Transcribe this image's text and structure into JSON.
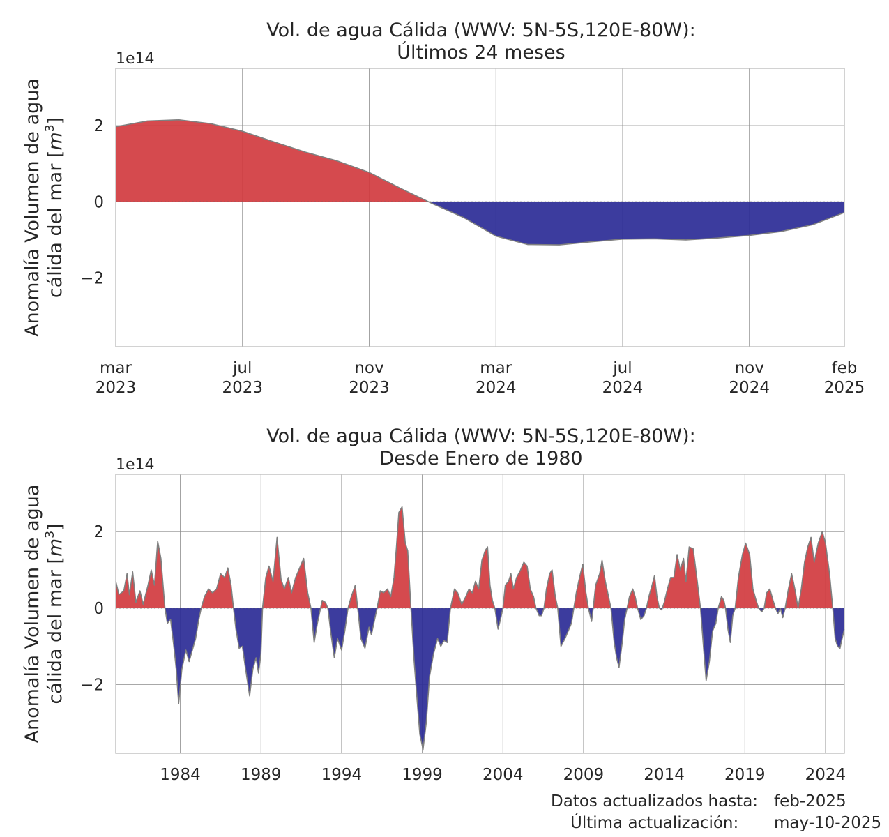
{
  "chart_data": [
    {
      "type": "area",
      "title": "Vol. de agua Cálida (WWV: 5N-5S,120E-80W):",
      "subtitle": "Últimos 24 meses",
      "ylabel": "Anomalía Volumen de agua",
      "ylabel_line2": "cálida del mar [",
      "ylabel_unit": "m",
      "ylabel_exp": "3",
      "ylabel_end": "]",
      "scale_label": "1e14",
      "ylim": [
        -3.8,
        3.5
      ],
      "yticks": [
        2,
        0,
        -2
      ],
      "ytick_labels": [
        "2",
        "0",
        "−2"
      ],
      "xlim": [
        0,
        23
      ],
      "xticks": [
        0,
        4,
        8,
        12,
        16,
        20,
        23
      ],
      "xtick_labels": [
        [
          "mar",
          "2023"
        ],
        [
          "jul",
          "2023"
        ],
        [
          "nov",
          "2023"
        ],
        [
          "mar",
          "2024"
        ],
        [
          "jul",
          "2024"
        ],
        [
          "nov",
          "2024"
        ],
        [
          "feb",
          "2025"
        ]
      ],
      "grid": true,
      "positive_color": "#d13b3f",
      "negative_color": "#2b2b96",
      "x": [
        "mar-2023",
        "abr-2023",
        "may-2023",
        "jun-2023",
        "jul-2023",
        "ago-2023",
        "sep-2023",
        "oct-2023",
        "nov-2023",
        "dic-2023",
        "ene-2024",
        "feb-2024",
        "mar-2024",
        "abr-2024",
        "may-2024",
        "jun-2024",
        "jul-2024",
        "ago-2024",
        "sep-2024",
        "oct-2024",
        "nov-2024",
        "dic-2024",
        "ene-2025",
        "feb-2025"
      ],
      "values": [
        1.97,
        2.12,
        2.15,
        2.05,
        1.85,
        1.57,
        1.3,
        1.07,
        0.77,
        0.35,
        -0.05,
        -0.42,
        -0.9,
        -1.12,
        -1.13,
        -1.05,
        -0.98,
        -0.97,
        -1.0,
        -0.95,
        -0.88,
        -0.78,
        -0.6,
        -0.28
      ]
    },
    {
      "type": "area",
      "title": "Vol. de agua Cálida (WWV: 5N-5S,120E-80W):",
      "subtitle": "Desde Enero de 1980",
      "ylabel": "Anomalía Volumen de agua",
      "ylabel_line2": "cálida del mar [",
      "ylabel_unit": "m",
      "ylabel_exp": "3",
      "ylabel_end": "]",
      "scale_label": "1e14",
      "ylim": [
        -3.8,
        3.5
      ],
      "yticks": [
        2,
        0,
        -2
      ],
      "ytick_labels": [
        "2",
        "0",
        "−2"
      ],
      "xlim": [
        1980.0,
        2025.17
      ],
      "xticks": [
        1984,
        1989,
        1994,
        1999,
        2004,
        2009,
        2014,
        2019,
        2024
      ],
      "xtick_labels": [
        "1984",
        "1989",
        "1994",
        "1999",
        "2004",
        "2009",
        "2014",
        "2019",
        "2024"
      ],
      "grid": true,
      "positive_color": "#d13b3f",
      "negative_color": "#2b2b96",
      "points": [
        [
          1980.0,
          0.7
        ],
        [
          1980.2,
          0.35
        ],
        [
          1980.5,
          0.45
        ],
        [
          1980.7,
          0.9
        ],
        [
          1980.85,
          0.35
        ],
        [
          1981.05,
          0.95
        ],
        [
          1981.25,
          0.15
        ],
        [
          1981.5,
          0.45
        ],
        [
          1981.7,
          0.1
        ],
        [
          1982.0,
          0.6
        ],
        [
          1982.2,
          1.0
        ],
        [
          1982.4,
          0.6
        ],
        [
          1982.6,
          1.75
        ],
        [
          1982.8,
          1.3
        ],
        [
          1983.05,
          0.0
        ],
        [
          1983.2,
          -0.4
        ],
        [
          1983.4,
          -0.3
        ],
        [
          1983.6,
          -1.0
        ],
        [
          1983.75,
          -1.6
        ],
        [
          1983.9,
          -2.5
        ],
        [
          1984.1,
          -1.6
        ],
        [
          1984.35,
          -1.1
        ],
        [
          1984.55,
          -1.4
        ],
        [
          1984.75,
          -1.1
        ],
        [
          1984.95,
          -0.8
        ],
        [
          1985.15,
          -0.3
        ],
        [
          1985.3,
          0.0
        ],
        [
          1985.5,
          0.3
        ],
        [
          1985.75,
          0.5
        ],
        [
          1986.0,
          0.4
        ],
        [
          1986.25,
          0.5
        ],
        [
          1986.5,
          0.9
        ],
        [
          1986.75,
          0.8
        ],
        [
          1986.95,
          1.05
        ],
        [
          1987.15,
          0.6
        ],
        [
          1987.3,
          0.0
        ],
        [
          1987.45,
          -0.55
        ],
        [
          1987.65,
          -1.05
        ],
        [
          1987.85,
          -1.0
        ],
        [
          1988.05,
          -1.6
        ],
        [
          1988.3,
          -2.3
        ],
        [
          1988.5,
          -1.6
        ],
        [
          1988.7,
          -1.3
        ],
        [
          1988.85,
          -1.7
        ],
        [
          1989.0,
          -1.2
        ],
        [
          1989.1,
          0.0
        ],
        [
          1989.3,
          0.8
        ],
        [
          1989.5,
          1.1
        ],
        [
          1989.75,
          0.7
        ],
        [
          1990.0,
          1.85
        ],
        [
          1990.25,
          0.75
        ],
        [
          1990.45,
          0.5
        ],
        [
          1990.7,
          0.8
        ],
        [
          1990.9,
          0.4
        ],
        [
          1991.15,
          0.8
        ],
        [
          1991.4,
          1.05
        ],
        [
          1991.65,
          1.3
        ],
        [
          1991.9,
          0.4
        ],
        [
          1992.1,
          0.0
        ],
        [
          1992.3,
          -0.9
        ],
        [
          1992.5,
          -0.4
        ],
        [
          1992.7,
          0.0
        ],
        [
          1992.8,
          0.2
        ],
        [
          1993.0,
          0.15
        ],
        [
          1993.15,
          0.0
        ],
        [
          1993.35,
          -0.7
        ],
        [
          1993.55,
          -1.3
        ],
        [
          1993.75,
          -0.8
        ],
        [
          1994.0,
          -1.1
        ],
        [
          1994.2,
          -0.6
        ],
        [
          1994.4,
          0.0
        ],
        [
          1994.6,
          0.3
        ],
        [
          1994.85,
          0.6
        ],
        [
          1995.0,
          0.0
        ],
        [
          1995.2,
          -0.8
        ],
        [
          1995.45,
          -1.05
        ],
        [
          1995.7,
          -0.5
        ],
        [
          1995.85,
          -0.7
        ],
        [
          1996.05,
          -0.3
        ],
        [
          1996.2,
          0.0
        ],
        [
          1996.4,
          0.45
        ],
        [
          1996.6,
          0.4
        ],
        [
          1996.85,
          0.5
        ],
        [
          1997.05,
          0.3
        ],
        [
          1997.25,
          0.8
        ],
        [
          1997.4,
          1.6
        ],
        [
          1997.55,
          2.5
        ],
        [
          1997.75,
          2.65
        ],
        [
          1997.95,
          1.7
        ],
        [
          1998.1,
          1.5
        ],
        [
          1998.3,
          0.0
        ],
        [
          1998.5,
          -1.4
        ],
        [
          1998.7,
          -2.5
        ],
        [
          1998.85,
          -3.3
        ],
        [
          1999.05,
          -3.7
        ],
        [
          1999.25,
          -3.0
        ],
        [
          1999.45,
          -1.8
        ],
        [
          1999.7,
          -1.2
        ],
        [
          1999.95,
          -0.8
        ],
        [
          2000.15,
          -1.0
        ],
        [
          2000.35,
          -0.85
        ],
        [
          2000.55,
          -0.9
        ],
        [
          2000.75,
          0.0
        ],
        [
          2001.0,
          0.5
        ],
        [
          2001.2,
          0.4
        ],
        [
          2001.45,
          0.1
        ],
        [
          2001.7,
          0.3
        ],
        [
          2001.9,
          0.5
        ],
        [
          2002.1,
          0.4
        ],
        [
          2002.3,
          0.7
        ],
        [
          2002.5,
          0.5
        ],
        [
          2002.7,
          1.25
        ],
        [
          2002.9,
          1.5
        ],
        [
          2003.05,
          1.6
        ],
        [
          2003.2,
          0.6
        ],
        [
          2003.35,
          0.2
        ],
        [
          2003.5,
          0.0
        ],
        [
          2003.7,
          -0.55
        ],
        [
          2003.85,
          -0.3
        ],
        [
          2004.0,
          0.0
        ],
        [
          2004.15,
          0.6
        ],
        [
          2004.35,
          0.7
        ],
        [
          2004.5,
          0.9
        ],
        [
          2004.65,
          0.5
        ],
        [
          2004.85,
          0.8
        ],
        [
          2005.1,
          1.0
        ],
        [
          2005.3,
          1.2
        ],
        [
          2005.5,
          1.1
        ],
        [
          2005.7,
          0.5
        ],
        [
          2005.9,
          0.3
        ],
        [
          2006.05,
          0.0
        ],
        [
          2006.25,
          -0.2
        ],
        [
          2006.4,
          -0.2
        ],
        [
          2006.55,
          0.0
        ],
        [
          2006.7,
          0.5
        ],
        [
          2006.9,
          0.9
        ],
        [
          2007.05,
          1.0
        ],
        [
          2007.25,
          0.3
        ],
        [
          2007.4,
          0.0
        ],
        [
          2007.6,
          -1.0
        ],
        [
          2007.85,
          -0.8
        ],
        [
          2008.05,
          -0.6
        ],
        [
          2008.25,
          -0.4
        ],
        [
          2008.4,
          0.0
        ],
        [
          2008.55,
          0.4
        ],
        [
          2008.75,
          0.8
        ],
        [
          2008.95,
          1.15
        ],
        [
          2009.15,
          0.4
        ],
        [
          2009.3,
          0.0
        ],
        [
          2009.5,
          -0.35
        ],
        [
          2009.6,
          0.0
        ],
        [
          2009.75,
          0.6
        ],
        [
          2010.0,
          0.9
        ],
        [
          2010.15,
          1.25
        ],
        [
          2010.35,
          0.7
        ],
        [
          2010.55,
          0.3
        ],
        [
          2010.7,
          0.0
        ],
        [
          2010.9,
          -0.9
        ],
        [
          2011.05,
          -1.3
        ],
        [
          2011.2,
          -1.55
        ],
        [
          2011.4,
          -0.9
        ],
        [
          2011.55,
          -0.3
        ],
        [
          2011.7,
          0.0
        ],
        [
          2011.85,
          0.3
        ],
        [
          2012.05,
          0.5
        ],
        [
          2012.2,
          0.3
        ],
        [
          2012.35,
          0.0
        ],
        [
          2012.55,
          -0.3
        ],
        [
          2012.75,
          -0.2
        ],
        [
          2012.9,
          0.0
        ],
        [
          2013.05,
          0.3
        ],
        [
          2013.25,
          0.6
        ],
        [
          2013.4,
          0.85
        ],
        [
          2013.55,
          0.3
        ],
        [
          2013.7,
          0.0
        ],
        [
          2013.85,
          -0.05
        ],
        [
          2014.0,
          0.15
        ],
        [
          2014.2,
          0.5
        ],
        [
          2014.4,
          0.8
        ],
        [
          2014.6,
          0.8
        ],
        [
          2014.8,
          1.4
        ],
        [
          2015.0,
          1.0
        ],
        [
          2015.2,
          1.3
        ],
        [
          2015.35,
          0.7
        ],
        [
          2015.55,
          1.6
        ],
        [
          2015.8,
          1.55
        ],
        [
          2016.05,
          0.7
        ],
        [
          2016.25,
          0.0
        ],
        [
          2016.45,
          -1.1
        ],
        [
          2016.6,
          -1.9
        ],
        [
          2016.8,
          -1.4
        ],
        [
          2017.0,
          -0.6
        ],
        [
          2017.2,
          -0.4
        ],
        [
          2017.35,
          0.0
        ],
        [
          2017.55,
          0.3
        ],
        [
          2017.7,
          0.2
        ],
        [
          2017.8,
          0.0
        ],
        [
          2017.95,
          -0.55
        ],
        [
          2018.1,
          -0.9
        ],
        [
          2018.25,
          -0.2
        ],
        [
          2018.4,
          0.0
        ],
        [
          2018.6,
          0.8
        ],
        [
          2018.85,
          1.4
        ],
        [
          2019.05,
          1.7
        ],
        [
          2019.3,
          1.4
        ],
        [
          2019.5,
          0.5
        ],
        [
          2019.7,
          0.2
        ],
        [
          2019.85,
          0.0
        ],
        [
          2020.05,
          -0.1
        ],
        [
          2020.2,
          0.0
        ],
        [
          2020.35,
          0.4
        ],
        [
          2020.55,
          0.5
        ],
        [
          2020.75,
          0.2
        ],
        [
          2020.9,
          0.0
        ],
        [
          2021.05,
          -0.15
        ],
        [
          2021.2,
          0.0
        ],
        [
          2021.35,
          -0.25
        ],
        [
          2021.5,
          0.0
        ],
        [
          2021.7,
          0.5
        ],
        [
          2021.9,
          0.9
        ],
        [
          2022.1,
          0.5
        ],
        [
          2022.3,
          0.0
        ],
        [
          2022.5,
          0.5
        ],
        [
          2022.7,
          1.2
        ],
        [
          2022.9,
          1.6
        ],
        [
          2023.1,
          1.85
        ],
        [
          2023.3,
          1.2
        ],
        [
          2023.55,
          1.7
        ],
        [
          2023.8,
          2.0
        ],
        [
          2024.0,
          1.7
        ],
        [
          2024.25,
          0.9
        ],
        [
          2024.45,
          0.0
        ],
        [
          2024.6,
          -0.8
        ],
        [
          2024.75,
          -1.0
        ],
        [
          2024.9,
          -1.05
        ],
        [
          2025.0,
          -0.85
        ],
        [
          2025.17,
          -0.55
        ]
      ]
    }
  ],
  "footer": {
    "data_label": "Datos actualizados hasta:",
    "data_value": "feb-2025",
    "update_label": "Última actualización:",
    "update_value": "may-10-2025"
  }
}
